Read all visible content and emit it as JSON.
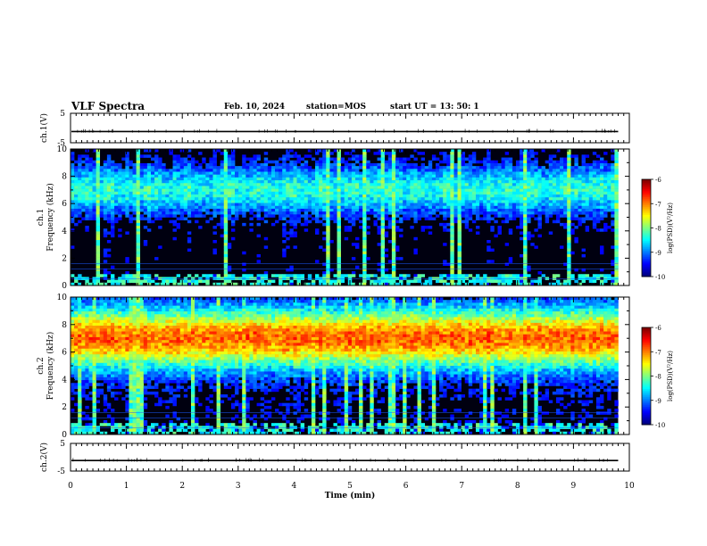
{
  "header": {
    "title": "VLF Spectra",
    "date": "Feb. 10, 2024",
    "station": "station=MOS",
    "start": "start  UT =   13: 50: 1"
  },
  "chart_data": [
    {
      "panel": "ch1-waveform",
      "type": "line",
      "ylabel": "ch.1(V)",
      "ylim": [
        -5,
        5
      ],
      "yticks": [
        "5",
        "-5"
      ],
      "level": -1.2,
      "xlim": [
        0,
        10
      ]
    },
    {
      "panel": "ch1-spectrogram",
      "type": "heatmap",
      "ylabel": "ch.1\nFrequency (kHz)",
      "ylabel_lines": [
        "ch.1",
        "Frequency (kHz)"
      ],
      "ylim": [
        0,
        10
      ],
      "yticks": [
        "0",
        "2",
        "4",
        "6",
        "8",
        "10"
      ],
      "xlim": [
        0,
        10
      ],
      "data_end_min": 9.8,
      "emission_band_khz": [
        5,
        9
      ],
      "peak_log_psd": -8.3,
      "background_log_psd": -9.8,
      "colorbar": {
        "label": "log(PSD)(V²/Hz)",
        "range": [
          -10,
          -6
        ],
        "ticks": [
          "-6",
          "-7",
          "-8",
          "-9",
          "-10"
        ]
      }
    },
    {
      "panel": "ch2-spectrogram",
      "type": "heatmap",
      "ylabel": "ch.2\nFrequency (kHz)",
      "ylabel_lines": [
        "ch.2",
        "Frequency (kHz)"
      ],
      "ylim": [
        0,
        10
      ],
      "yticks": [
        "0",
        "2",
        "4",
        "6",
        "8",
        "10"
      ],
      "xlim": [
        0,
        10
      ],
      "data_end_min": 9.8,
      "emission_band_khz": [
        4.5,
        9.5
      ],
      "peak_log_psd": -6.8,
      "background_log_psd": -9.6,
      "colorbar": {
        "label": "log(PSD)(V²/Hz)",
        "range": [
          -10,
          -6
        ],
        "ticks": [
          "-6",
          "-7",
          "-8",
          "-9",
          "-10"
        ]
      }
    },
    {
      "panel": "ch2-waveform",
      "type": "line",
      "ylabel": "ch.2(V)",
      "ylim": [
        -5,
        5
      ],
      "yticks": [
        "5",
        "-5"
      ],
      "level": -1.2,
      "xlim": [
        0,
        10
      ]
    }
  ],
  "xaxis": {
    "label": "Time (min)",
    "ticks": [
      "0",
      "1",
      "2",
      "3",
      "4",
      "5",
      "6",
      "7",
      "8",
      "9",
      "10"
    ]
  }
}
